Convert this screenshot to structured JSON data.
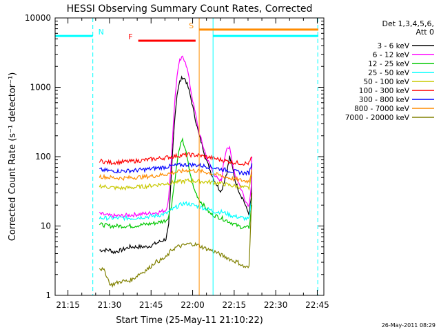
{
  "chart_data": {
    "type": "line",
    "title": "HESSI Observing Summary Count Rates, Corrected",
    "xlabel": "Start Time (25-May-11 21:10:22)",
    "ylabel": "Corrected Count Rate (s⁻¹ detector⁻¹)",
    "ylog": true,
    "ylim": [
      1,
      10000
    ],
    "xlim_minutes": [
      0,
      97
    ],
    "y_ticks": [
      "1",
      "10",
      "100",
      "1000",
      "10000"
    ],
    "x_ticks": [
      {
        "t": 4.63,
        "label": "21:15"
      },
      {
        "t": 19.63,
        "label": "21:30"
      },
      {
        "t": 34.63,
        "label": "21:45"
      },
      {
        "t": 49.63,
        "label": "22:00"
      },
      {
        "t": 64.63,
        "label": "22:15"
      },
      {
        "t": 79.63,
        "label": "22:30"
      },
      {
        "t": 94.63,
        "label": "22:45"
      }
    ],
    "legend_header": [
      "Det 1,3,4,5,6,",
      "Att 0"
    ],
    "legend_placement": "right",
    "series": [
      {
        "name": "3 - 6 keV",
        "color": "#000000",
        "points": [
          [
            16,
            4.5
          ],
          [
            20,
            4.5
          ],
          [
            21,
            4.2
          ],
          [
            24,
            4.5
          ],
          [
            27,
            5
          ],
          [
            30,
            5
          ],
          [
            33,
            5
          ],
          [
            36,
            5.5
          ],
          [
            38,
            6
          ],
          [
            40,
            6.5
          ],
          [
            41,
            10
          ],
          [
            42,
            60
          ],
          [
            43,
            300
          ],
          [
            44,
            800
          ],
          [
            45,
            1200
          ],
          [
            46,
            1400
          ],
          [
            47,
            1300
          ],
          [
            48,
            1000
          ],
          [
            49,
            700
          ],
          [
            50,
            450
          ],
          [
            51,
            300
          ],
          [
            52,
            200
          ],
          [
            53,
            150
          ],
          [
            54,
            110
          ],
          [
            55,
            80
          ],
          [
            57,
            50
          ],
          [
            59,
            35
          ],
          [
            60,
            32
          ],
          [
            62,
            60
          ],
          [
            63,
            100
          ],
          [
            64,
            70
          ],
          [
            65,
            45
          ],
          [
            66,
            35
          ],
          [
            67,
            28
          ],
          [
            68,
            24
          ],
          [
            69,
            18
          ],
          [
            70,
            15
          ],
          [
            70.8,
            25
          ],
          [
            71,
            80
          ]
        ]
      },
      {
        "name": "6 - 12 keV",
        "color": "#ff00ff",
        "points": [
          [
            16,
            15
          ],
          [
            20,
            14
          ],
          [
            24,
            14
          ],
          [
            28,
            14.5
          ],
          [
            32,
            15
          ],
          [
            36,
            15.5
          ],
          [
            38,
            16
          ],
          [
            40,
            17
          ],
          [
            41,
            25
          ],
          [
            42,
            100
          ],
          [
            43,
            500
          ],
          [
            44,
            1500
          ],
          [
            45,
            2400
          ],
          [
            46,
            2700
          ],
          [
            47,
            2400
          ],
          [
            48,
            1600
          ],
          [
            49,
            900
          ],
          [
            50,
            550
          ],
          [
            51,
            350
          ],
          [
            52,
            220
          ],
          [
            53,
            160
          ],
          [
            54,
            120
          ],
          [
            55,
            90
          ],
          [
            57,
            60
          ],
          [
            59,
            45
          ],
          [
            60,
            45
          ],
          [
            61,
            90
          ],
          [
            62,
            140
          ],
          [
            63,
            130
          ],
          [
            64,
            80
          ],
          [
            65,
            55
          ],
          [
            66,
            45
          ],
          [
            67,
            35
          ],
          [
            68,
            28
          ],
          [
            69,
            22
          ],
          [
            70,
            20
          ],
          [
            70.8,
            40
          ],
          [
            71,
            100
          ]
        ]
      },
      {
        "name": "12 - 25 keV",
        "color": "#00c800",
        "points": [
          [
            16,
            10.5
          ],
          [
            20,
            10
          ],
          [
            24,
            10
          ],
          [
            28,
            10
          ],
          [
            32,
            10.5
          ],
          [
            36,
            11
          ],
          [
            40,
            12
          ],
          [
            41,
            14
          ],
          [
            42,
            20
          ],
          [
            43,
            40
          ],
          [
            44,
            80
          ],
          [
            45,
            140
          ],
          [
            46,
            170
          ],
          [
            47,
            130
          ],
          [
            48,
            80
          ],
          [
            49,
            50
          ],
          [
            50,
            35
          ],
          [
            52,
            24
          ],
          [
            54,
            19
          ],
          [
            56,
            15
          ],
          [
            58,
            14
          ],
          [
            60,
            13
          ],
          [
            62,
            12
          ],
          [
            64,
            11
          ],
          [
            66,
            10
          ],
          [
            68,
            9.5
          ],
          [
            70,
            9.5
          ],
          [
            71,
            20
          ]
        ]
      },
      {
        "name": "25 - 50 keV",
        "color": "#00ffff",
        "points": [
          [
            16,
            13
          ],
          [
            20,
            13
          ],
          [
            24,
            13
          ],
          [
            28,
            13
          ],
          [
            32,
            13.5
          ],
          [
            36,
            14
          ],
          [
            40,
            15
          ],
          [
            42,
            17
          ],
          [
            44,
            19
          ],
          [
            46,
            21
          ],
          [
            48,
            21
          ],
          [
            50,
            20
          ],
          [
            52,
            19
          ],
          [
            54,
            18
          ],
          [
            56,
            17
          ],
          [
            58,
            16
          ],
          [
            60,
            16
          ],
          [
            62,
            15
          ],
          [
            64,
            14
          ],
          [
            66,
            13.5
          ],
          [
            68,
            13
          ],
          [
            70,
            12.5
          ],
          [
            71,
            25
          ]
        ]
      },
      {
        "name": "50 - 100 keV",
        "color": "#c8c800",
        "points": [
          [
            16,
            38
          ],
          [
            20,
            36
          ],
          [
            24,
            35
          ],
          [
            28,
            36
          ],
          [
            32,
            37
          ],
          [
            36,
            39
          ],
          [
            40,
            41
          ],
          [
            44,
            43
          ],
          [
            48,
            45
          ],
          [
            52,
            44
          ],
          [
            56,
            43
          ],
          [
            60,
            41
          ],
          [
            64,
            38
          ],
          [
            68,
            36
          ],
          [
            70,
            35
          ],
          [
            71,
            55
          ]
        ]
      },
      {
        "name": "100 - 300 keV",
        "color": "#ff0000",
        "points": [
          [
            16,
            88
          ],
          [
            18,
            84
          ],
          [
            20,
            82
          ],
          [
            24,
            84
          ],
          [
            28,
            86
          ],
          [
            32,
            89
          ],
          [
            36,
            93
          ],
          [
            40,
            97
          ],
          [
            44,
            103
          ],
          [
            48,
            107
          ],
          [
            52,
            104
          ],
          [
            56,
            97
          ],
          [
            60,
            90
          ],
          [
            64,
            83
          ],
          [
            68,
            80
          ],
          [
            70,
            80
          ],
          [
            71,
            100
          ]
        ]
      },
      {
        "name": "300 - 800 keV",
        "color": "#0000ff",
        "points": [
          [
            16,
            65
          ],
          [
            20,
            62
          ],
          [
            24,
            62
          ],
          [
            28,
            63
          ],
          [
            32,
            65
          ],
          [
            36,
            68
          ],
          [
            40,
            71
          ],
          [
            44,
            75
          ],
          [
            48,
            77
          ],
          [
            52,
            75
          ],
          [
            56,
            71
          ],
          [
            60,
            66
          ],
          [
            64,
            62
          ],
          [
            68,
            58
          ],
          [
            70,
            58
          ],
          [
            71,
            80
          ]
        ]
      },
      {
        "name": "800 - 7000 keV",
        "color": "#ff8c00",
        "points": [
          [
            16,
            52
          ],
          [
            20,
            50
          ],
          [
            24,
            49
          ],
          [
            28,
            50
          ],
          [
            32,
            51
          ],
          [
            36,
            53
          ],
          [
            40,
            56
          ],
          [
            44,
            60
          ],
          [
            48,
            64
          ],
          [
            52,
            62
          ],
          [
            56,
            58
          ],
          [
            60,
            53
          ],
          [
            64,
            48
          ],
          [
            68,
            45
          ],
          [
            70,
            44
          ],
          [
            71,
            65
          ]
        ]
      },
      {
        "name": "7000 - 20000 keV",
        "color": "#808000",
        "points": [
          [
            16,
            2.5
          ],
          [
            18,
            2.2
          ],
          [
            20,
            1.4
          ],
          [
            22,
            1.5
          ],
          [
            24,
            1.6
          ],
          [
            26,
            1.6
          ],
          [
            28,
            1.7
          ],
          [
            30,
            2
          ],
          [
            32,
            2.2
          ],
          [
            34,
            2.5
          ],
          [
            36,
            3
          ],
          [
            38,
            3.2
          ],
          [
            40,
            3.5
          ],
          [
            42,
            4.5
          ],
          [
            44,
            5
          ],
          [
            46,
            5.2
          ],
          [
            48,
            5.5
          ],
          [
            50,
            5.5
          ],
          [
            52,
            5.2
          ],
          [
            54,
            4.8
          ],
          [
            56,
            4.5
          ],
          [
            58,
            4.2
          ],
          [
            60,
            3.8
          ],
          [
            62,
            3.5
          ],
          [
            64,
            3.2
          ],
          [
            66,
            3
          ],
          [
            68,
            2.6
          ],
          [
            70,
            2.5
          ],
          [
            71,
            30
          ]
        ]
      }
    ],
    "state_lines": [
      {
        "label": "N",
        "color": "#00ffff",
        "level": 5500,
        "spans": [
          [
            0,
            13.6
          ],
          [
            57,
            95
          ]
        ],
        "dashed_t": [
          13.6,
          94.8
        ],
        "solid_t": [
          0,
          57
        ]
      },
      {
        "label": "S",
        "color": "#ff8c00",
        "level": 6800,
        "spans": [
          [
            52,
            95
          ]
        ],
        "dashed_t": [],
        "solid_t": [
          52
        ]
      },
      {
        "label": "F",
        "color": "#ff0000",
        "level": 4700,
        "spans": [
          [
            30,
            50.7
          ]
        ],
        "dashed_t": [],
        "solid_t": []
      }
    ],
    "timestamp": "26-May-2011 08:29"
  }
}
